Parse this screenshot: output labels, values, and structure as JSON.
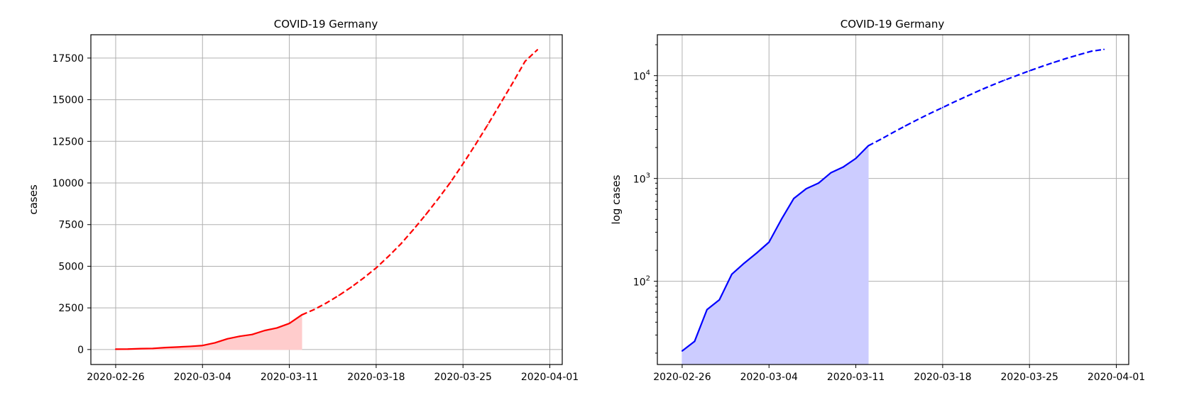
{
  "chart_data": [
    {
      "type": "line",
      "title": "COVID-19 Germany",
      "xlabel": "",
      "ylabel": "cases",
      "yscale": "linear",
      "grid": true,
      "xlim": [
        "2020-02-24",
        "2020-04-02"
      ],
      "ylim": [
        -900,
        18900
      ],
      "x_ticks": [
        "2020-02-26",
        "2020-03-04",
        "2020-03-11",
        "2020-03-18",
        "2020-03-25",
        "2020-04-01"
      ],
      "y_ticks": [
        0,
        2500,
        5000,
        7500,
        10000,
        12500,
        15000,
        17500
      ],
      "y_tick_labels": [
        "0",
        "2500",
        "5000",
        "7500",
        "10000",
        "12500",
        "15000",
        "17500"
      ],
      "colors": {
        "line": "#ff0000",
        "fill": "#ffcccc"
      },
      "series": [
        {
          "style": "solid",
          "fill_under": true,
          "x": [
            "2020-02-26",
            "2020-02-27",
            "2020-02-28",
            "2020-02-29",
            "2020-03-01",
            "2020-03-02",
            "2020-03-03",
            "2020-03-04",
            "2020-03-05",
            "2020-03-06",
            "2020-03-07",
            "2020-03-08",
            "2020-03-09",
            "2020-03-10",
            "2020-03-11",
            "2020-03-12"
          ],
          "y": [
            21,
            26,
            53,
            66,
            117,
            150,
            188,
            240,
            400,
            639,
            795,
            902,
            1139,
            1296,
            1567,
            2078
          ]
        },
        {
          "style": "dashed",
          "fill_under": false,
          "x": [
            "2020-03-12",
            "2020-03-13",
            "2020-03-14",
            "2020-03-15",
            "2020-03-16",
            "2020-03-17",
            "2020-03-18",
            "2020-03-19",
            "2020-03-20",
            "2020-03-21",
            "2020-03-22",
            "2020-03-23",
            "2020-03-24",
            "2020-03-25",
            "2020-03-26",
            "2020-03-27",
            "2020-03-28",
            "2020-03-29",
            "2020-03-30",
            "2020-03-31"
          ],
          "y": [
            2078,
            2400,
            2800,
            3250,
            3750,
            4300,
            4900,
            5600,
            6350,
            7200,
            8100,
            9050,
            10050,
            11150,
            12300,
            13500,
            14750,
            16000,
            17300,
            18000
          ]
        }
      ]
    },
    {
      "type": "line",
      "title": "COVID-19 Germany",
      "xlabel": "",
      "ylabel": "log cases",
      "yscale": "log",
      "grid": true,
      "xlim": [
        "2020-02-24",
        "2020-04-02"
      ],
      "ylim": [
        15.5,
        25000
      ],
      "x_ticks": [
        "2020-02-26",
        "2020-03-04",
        "2020-03-11",
        "2020-03-18",
        "2020-03-25",
        "2020-04-01"
      ],
      "y_major_ticks": [
        100,
        1000,
        10000
      ],
      "y_tick_labels": {
        "base": "10",
        "exponents": [
          "2",
          "3",
          "4"
        ]
      },
      "colors": {
        "line": "#0000ff",
        "fill": "#ccccff"
      },
      "series": [
        {
          "style": "solid",
          "fill_under": true,
          "x": [
            "2020-02-26",
            "2020-02-27",
            "2020-02-28",
            "2020-02-29",
            "2020-03-01",
            "2020-03-02",
            "2020-03-03",
            "2020-03-04",
            "2020-03-05",
            "2020-03-06",
            "2020-03-07",
            "2020-03-08",
            "2020-03-09",
            "2020-03-10",
            "2020-03-11",
            "2020-03-12"
          ],
          "y": [
            21,
            26,
            53,
            66,
            117,
            150,
            188,
            240,
            400,
            639,
            795,
            902,
            1139,
            1296,
            1567,
            2078
          ]
        },
        {
          "style": "dashed",
          "fill_under": false,
          "x": [
            "2020-03-12",
            "2020-03-13",
            "2020-03-14",
            "2020-03-15",
            "2020-03-16",
            "2020-03-17",
            "2020-03-18",
            "2020-03-19",
            "2020-03-20",
            "2020-03-21",
            "2020-03-22",
            "2020-03-23",
            "2020-03-24",
            "2020-03-25",
            "2020-03-26",
            "2020-03-27",
            "2020-03-28",
            "2020-03-29",
            "2020-03-30",
            "2020-03-31"
          ],
          "y": [
            2078,
            2400,
            2800,
            3250,
            3750,
            4300,
            4900,
            5600,
            6350,
            7200,
            8100,
            9050,
            10050,
            11150,
            12300,
            13500,
            14750,
            16000,
            17300,
            18000
          ]
        }
      ]
    }
  ]
}
